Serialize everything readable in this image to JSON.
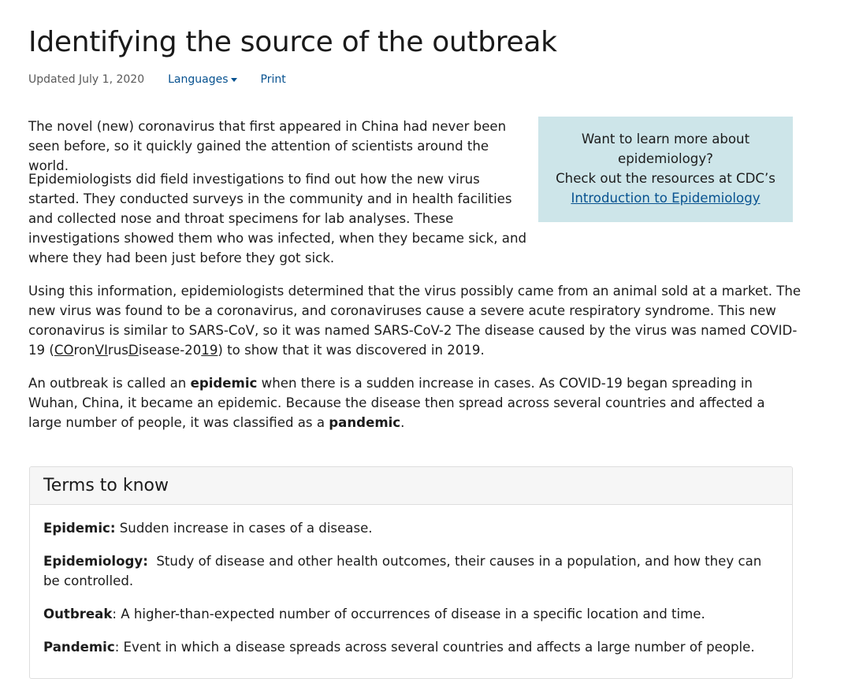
{
  "page": {
    "title": "Identifying the source of the outbreak",
    "updated": "Updated July 1, 2020",
    "languages_label": "Languages",
    "print_label": "Print"
  },
  "paragraphs": {
    "p1": "The novel (new) coronavirus that first appeared in China had never been seen before, so it quickly gained the attention of scientists around the world.",
    "p2": "Epidemiologists did field investigations to find out how the new virus started. They conducted surveys in the community and in health facilities and collected nose and throat specimens for lab analyses. These investigations showed them who was infected, when they became sick, and where they had been just before they got sick.",
    "p3_text": "Using this information, epidemiologists determined that the virus possibly came from an animal sold at a market. The new virus was found to be a coronavirus, and coronaviruses cause a severe acute respiratory syndrome. This new coronavirus is similar to SARS-CoV, so it was named SARS-CoV-2 The disease caused by the virus was named COVID-19 (",
    "p3_co": "CO",
    "p3_ron": "ron",
    "p3_vi": "VI",
    "p3_rus": "rus",
    "p3_d": "D",
    "p3_isease": "isease-20",
    "p3_19": "19",
    "p3_end": ") to show that it was discovered in 2019.",
    "p4_a": "An outbreak is called an ",
    "p4_epidemic": "epidemic",
    "p4_b": " when there is a sudden increase in cases. As COVID-19 began spreading in Wuhan, China, it became an epidemic. Because the disease then spread across several countries and affected a large number of people, it was classified as a ",
    "p4_pandemic": "pandemic",
    "p4_c": "."
  },
  "callout": {
    "line1": "Want to learn more about epidemiology?",
    "line2": "Check out the resources at CDC’s",
    "link": "Introduction to Epidemiology"
  },
  "terms": {
    "heading": "Terms to know",
    "items": [
      {
        "term": "Epidemic:",
        "definition": " Sudden increase in cases of a disease."
      },
      {
        "term": "Epidemiology:",
        "definition": "  Study of disease and other health outcomes, their causes in a population, and how they can be controlled."
      },
      {
        "term": "Outbreak",
        "definition": ": A higher-than-expected number of occurrences of disease in a specific location and time."
      },
      {
        "term": "Pandemic",
        "definition": ": Event in which a disease spreads across several countries and affects a large number of people."
      }
    ]
  },
  "colors": {
    "link": "#075290",
    "callout_bg": "#cde5e9",
    "text": "#1c1c1c",
    "meta": "#5a5a5a"
  }
}
